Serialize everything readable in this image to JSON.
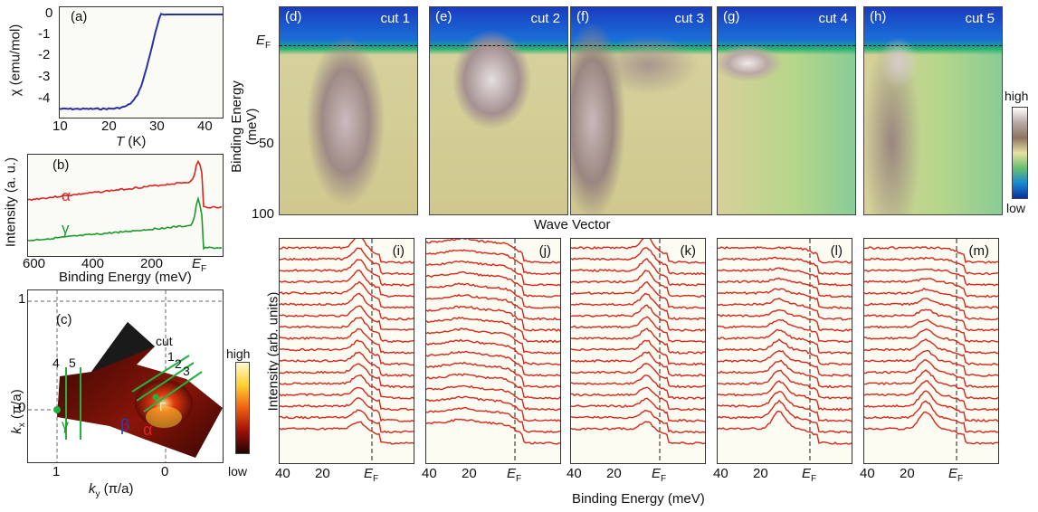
{
  "panels": {
    "a": {
      "letter": "(a)",
      "ylabel": "χ (emu/mol)",
      "xlabel_T": "T",
      "xlabel_unit": " (K)",
      "yticks": [
        "0",
        "-1",
        "-2",
        "-3",
        "-4"
      ],
      "xticks": [
        "10",
        "20",
        "30",
        "40"
      ]
    },
    "b": {
      "letter": "(b)",
      "ylabel": "Intensity (a. u.)",
      "xlabel": "Binding Energy (meV)",
      "xticks": [
        "600",
        "400",
        "200"
      ],
      "ef": "E",
      "ef_sub": "F",
      "alpha": "α",
      "gamma": "γ"
    },
    "c": {
      "letter": "(c)",
      "ylabel_k": "k",
      "ylabel_sub": "x",
      "ylabel_unit": " (π/a)",
      "xlabel_k": "k",
      "xlabel_sub": "y",
      "xlabel_unit": " (π/a)",
      "yticks": [
        "1",
        "0"
      ],
      "xticks": [
        "1",
        "0"
      ],
      "cut_word": "cut",
      "cut_nums": [
        "4",
        "5",
        "1",
        "2",
        "3"
      ],
      "m": "M",
      "gamma_pt": "Γ",
      "beta": "β",
      "alpha": "α",
      "gamma": "γ",
      "scale_high": "high",
      "scale_low": "low"
    },
    "arpes": {
      "ylabel": "Binding Energy (meV)",
      "yticks": [
        "50",
        "100"
      ],
      "ef": "E",
      "ef_sub": "F",
      "xlabel": "Wave Vector",
      "scale_high": "high",
      "scale_low": "low",
      "cuts": [
        {
          "letter": "(d)",
          "label": "cut 1"
        },
        {
          "letter": "(e)",
          "label": "cut 2"
        },
        {
          "letter": "(f)",
          "label": "cut 3"
        },
        {
          "letter": "(g)",
          "label": "cut 4"
        },
        {
          "letter": "(h)",
          "label": "cut 5"
        }
      ]
    },
    "edc": {
      "ylabel": "Intensity (arb. units)",
      "xlabel": "Binding Energy (meV)",
      "xticks": [
        "40",
        "20"
      ],
      "ef": "E",
      "ef_sub": "F",
      "letters": [
        "(i)",
        "(j)",
        "(k)",
        "(l)",
        "(m)"
      ]
    }
  }
}
